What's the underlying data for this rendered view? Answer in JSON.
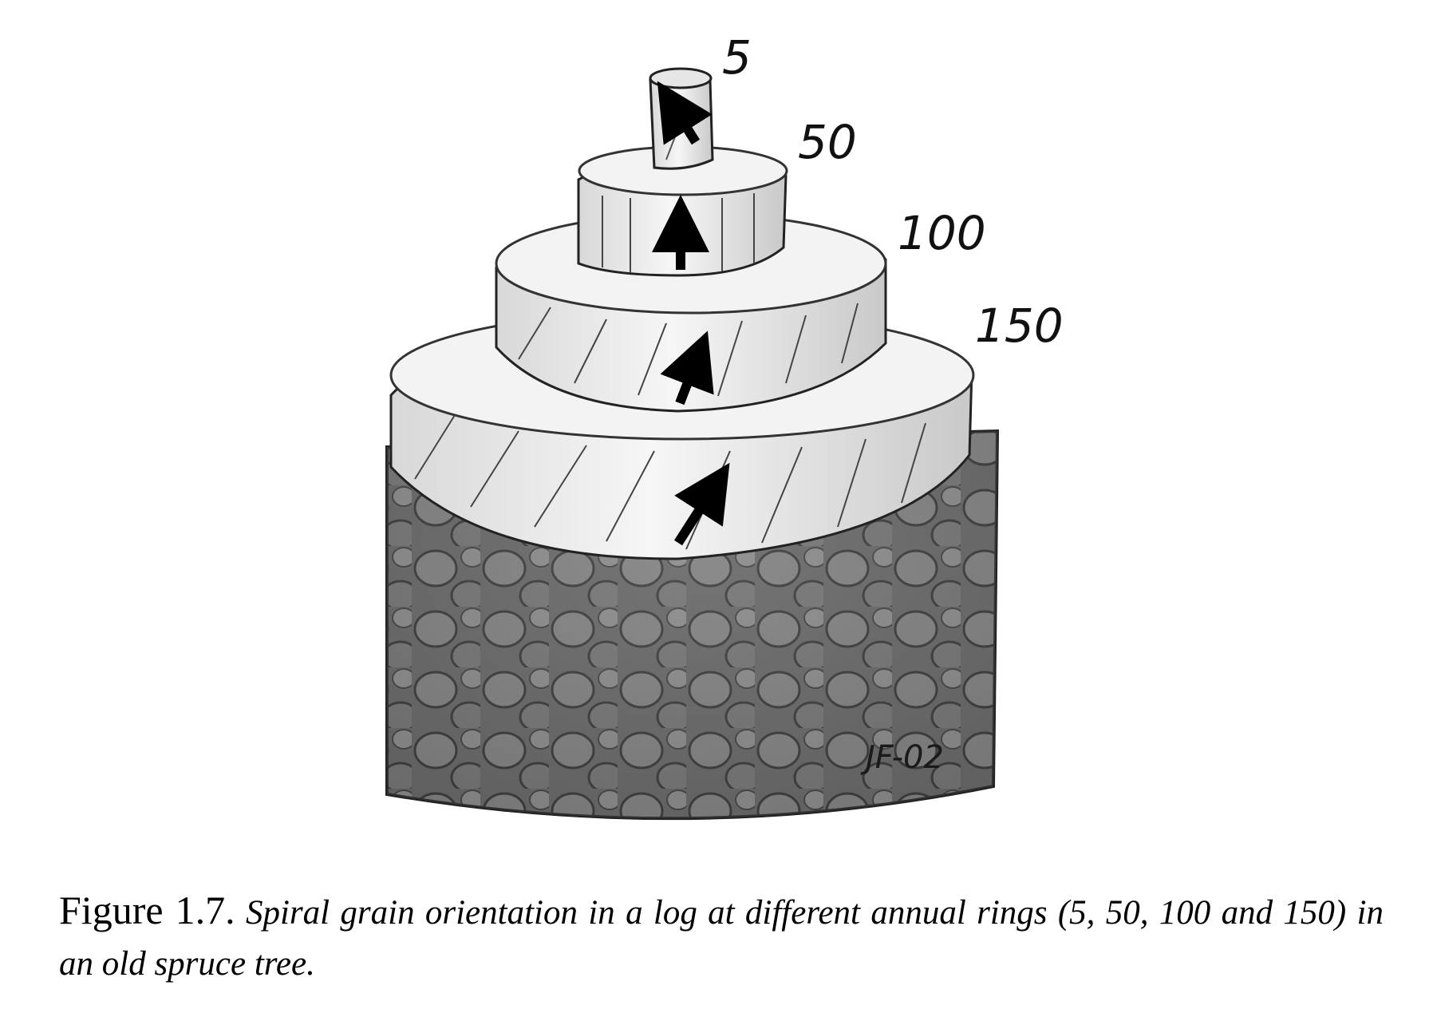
{
  "figure": {
    "ring_labels": [
      "5",
      "50",
      "100",
      "150"
    ],
    "signature": "JF-02",
    "caption_number": "Figure 1.7.",
    "caption_text": "Spiral grain orientation in a log at different annual rings (5, 50, 100 and 150) in an old spruce tree."
  },
  "colors": {
    "bark": "#5a5a5a",
    "wood": "#f1f1f1",
    "ink": "#111111"
  }
}
